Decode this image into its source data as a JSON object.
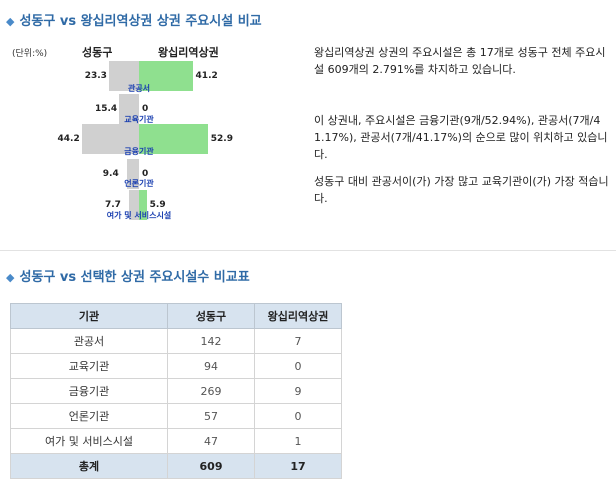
{
  "section1": {
    "title": "성동구 vs 왕십리역상권 상권 주요시설 비교"
  },
  "section2": {
    "title": "성동구 vs 선택한 상권 주요시설수 비교표"
  },
  "chart_data": {
    "type": "bar",
    "unit_label": "(단위:%)",
    "categories": [
      "관공서",
      "교육기관",
      "금융기관",
      "언론기관",
      "여가 및 서비스시설"
    ],
    "series": [
      {
        "name": "성동구",
        "values": [
          23.3,
          15.4,
          44.2,
          9.4,
          7.7
        ],
        "labels": [
          "23.3",
          "15.4",
          "44.2",
          "9.4",
          "7.7"
        ],
        "color": "#d0d0d0"
      },
      {
        "name": "왕십리역상권",
        "values": [
          41.2,
          0,
          52.9,
          0,
          5.9
        ],
        "labels": [
          "41.2",
          "0",
          "52.9",
          "0",
          "5.9"
        ],
        "color": "#8fe08f"
      }
    ]
  },
  "description": [
    "왕십리역상권 상권의 주요시설은 총 17개로 성동구 전체 주요시설 609개의 2.791%를 차지하고 있습니다.",
    "이 상권내, 주요시설은 금융기관(9개/52.94%), 관공서(7개/41.17%), 관공서(7개/41.17%)의 순으로 많이 위치하고 있습니다.",
    "성동구 대비 관공서이(가) 가장 많고 교육기관이(가) 가장 적습니다."
  ],
  "table": {
    "headers": [
      "기관",
      "성동구",
      "왕십리역상권"
    ],
    "rows": [
      [
        "관공서",
        "142",
        "7"
      ],
      [
        "교육기관",
        "94",
        "0"
      ],
      [
        "금융기관",
        "269",
        "9"
      ],
      [
        "언론기관",
        "57",
        "0"
      ],
      [
        "여가 및 서비스시설",
        "47",
        "1"
      ]
    ],
    "total": [
      "총계",
      "609",
      "17"
    ]
  }
}
